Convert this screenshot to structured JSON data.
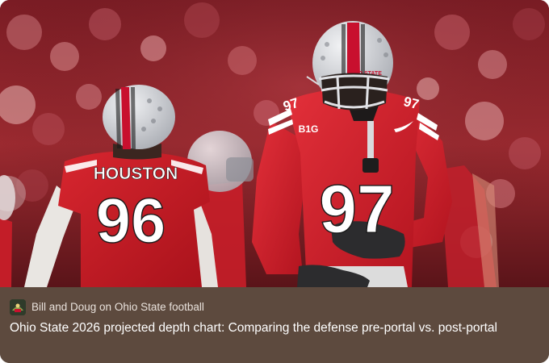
{
  "publication": {
    "name": "Bill and Doug on Ohio State football",
    "icon": "publication-logo-icon"
  },
  "post": {
    "title": "Ohio State 2026 projected depth chart: Comparing the defense pre-portal vs. post-portal"
  },
  "image": {
    "left_player": {
      "name": "HOUSTON",
      "number": "96"
    },
    "right_player": {
      "number": "97",
      "shoulder_number_left": "97",
      "shoulder_number_right": "97",
      "conference_patch": "B1G",
      "helmet_text": "OHIO STATE"
    }
  },
  "colors": {
    "footer_bg": "#5d4a3e",
    "scarlet": "#c8102e",
    "jersey_text": "#ffffff",
    "helmet": "#d9dadd"
  }
}
